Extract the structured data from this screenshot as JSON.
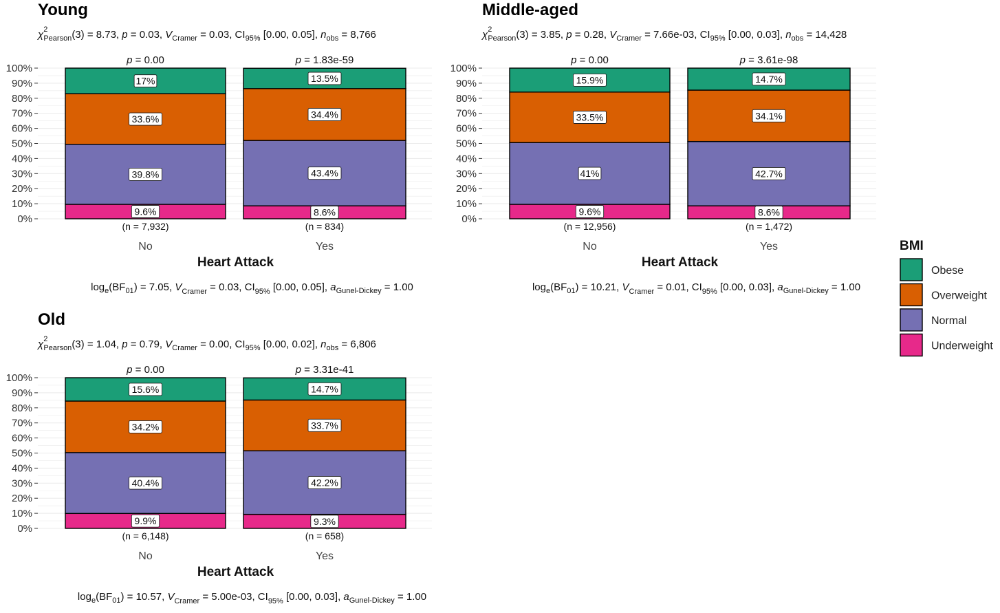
{
  "legend": {
    "title": "BMI",
    "items": [
      {
        "label": "Obese",
        "color": "#1b9e77"
      },
      {
        "label": "Overweight",
        "color": "#d95f02"
      },
      {
        "label": "Normal",
        "color": "#7570b3"
      },
      {
        "label": "Underweight",
        "color": "#e7298a"
      }
    ]
  },
  "chart_data": [
    {
      "type": "bar",
      "stacked": true,
      "title": "Young",
      "subtitle": {
        "stat": "3",
        "rest": " = 8.73, p = 0.03, V̂ Cramer = 0.03, CI95% [0.00, 0.05], n obs = 8,766",
        "chi2_args": "(3) = 8.73, ",
        "p": "= 0.03, ",
        "v": "= 0.03, CI",
        "ci": "[0.00, 0.05], ",
        "n": "= 8,766"
      },
      "caption": {
        "bf": "(BF",
        "bf_val": ") = 7.05, ",
        "v": "= 0.03, CI",
        "ci": "[0.00, 0.05], ",
        "a": "= 1.00"
      },
      "xlabel": "Heart Attack",
      "ylim": [
        0,
        100
      ],
      "yticks": [
        "0%",
        "10%",
        "20%",
        "30%",
        "40%",
        "50%",
        "60%",
        "70%",
        "80%",
        "90%",
        "100%"
      ],
      "categories": [
        "No",
        "Yes"
      ],
      "pvalues": [
        "0.00",
        "1.83e-59"
      ],
      "counts": [
        "(n = 7,932)",
        "(n = 834)"
      ],
      "series": [
        {
          "name": "Underweight",
          "values": [
            9.6,
            8.6
          ],
          "labels": [
            "9.6%",
            "8.6%"
          ]
        },
        {
          "name": "Normal",
          "values": [
            39.8,
            43.4
          ],
          "labels": [
            "39.8%",
            "43.4%"
          ]
        },
        {
          "name": "Overweight",
          "values": [
            33.6,
            34.4
          ],
          "labels": [
            "33.6%",
            "34.4%"
          ]
        },
        {
          "name": "Obese",
          "values": [
            17.0,
            13.5
          ],
          "labels": [
            "17%",
            "13.5%"
          ]
        }
      ]
    },
    {
      "type": "bar",
      "stacked": true,
      "title": "Middle-aged",
      "subtitle": {
        "chi2_args": "(3) = 3.85, ",
        "p": "= 0.28, ",
        "v": "= 7.66e-03, CI",
        "ci": "[0.00, 0.03], ",
        "n": "= 14,428"
      },
      "caption": {
        "bf": "(BF",
        "bf_val": ") = 10.21, ",
        "v": "= 0.01, CI",
        "ci": "[0.00, 0.03], ",
        "a": "= 1.00"
      },
      "xlabel": "Heart Attack",
      "ylim": [
        0,
        100
      ],
      "yticks": [
        "0%",
        "10%",
        "20%",
        "30%",
        "40%",
        "50%",
        "60%",
        "70%",
        "80%",
        "90%",
        "100%"
      ],
      "categories": [
        "No",
        "Yes"
      ],
      "pvalues": [
        "0.00",
        "3.61e-98"
      ],
      "counts": [
        "(n = 12,956)",
        "(n = 1,472)"
      ],
      "series": [
        {
          "name": "Underweight",
          "values": [
            9.6,
            8.6
          ],
          "labels": [
            "9.6%",
            "8.6%"
          ]
        },
        {
          "name": "Normal",
          "values": [
            41.0,
            42.7
          ],
          "labels": [
            "41%",
            "42.7%"
          ]
        },
        {
          "name": "Overweight",
          "values": [
            33.5,
            34.1
          ],
          "labels": [
            "33.5%",
            "34.1%"
          ]
        },
        {
          "name": "Obese",
          "values": [
            15.9,
            14.7
          ],
          "labels": [
            "15.9%",
            "14.7%"
          ]
        }
      ]
    },
    {
      "type": "bar",
      "stacked": true,
      "title": "Old",
      "subtitle": {
        "chi2_args": "(3) = 1.04, ",
        "p": "= 0.79, ",
        "v": "= 0.00, CI",
        "ci": "[0.00, 0.02], ",
        "n": "= 6,806"
      },
      "caption": {
        "bf": "(BF",
        "bf_val": ") = 10.57, ",
        "v": "= 5.00e-03, CI",
        "ci": "[0.00, 0.03], ",
        "a": "= 1.00"
      },
      "xlabel": "Heart Attack",
      "ylim": [
        0,
        100
      ],
      "yticks": [
        "0%",
        "10%",
        "20%",
        "30%",
        "40%",
        "50%",
        "60%",
        "70%",
        "80%",
        "90%",
        "100%"
      ],
      "categories": [
        "No",
        "Yes"
      ],
      "pvalues": [
        "0.00",
        "3.31e-41"
      ],
      "counts": [
        "(n = 6,148)",
        "(n = 658)"
      ],
      "series": [
        {
          "name": "Underweight",
          "values": [
            9.9,
            9.3
          ],
          "labels": [
            "9.9%",
            "9.3%"
          ]
        },
        {
          "name": "Normal",
          "values": [
            40.4,
            42.2
          ],
          "labels": [
            "40.4%",
            "42.2%"
          ]
        },
        {
          "name": "Overweight",
          "values": [
            34.2,
            33.7
          ],
          "labels": [
            "34.2%",
            "33.7%"
          ]
        },
        {
          "name": "Obese",
          "values": [
            15.6,
            14.7
          ],
          "labels": [
            "15.6%",
            "14.7%"
          ]
        }
      ]
    }
  ]
}
